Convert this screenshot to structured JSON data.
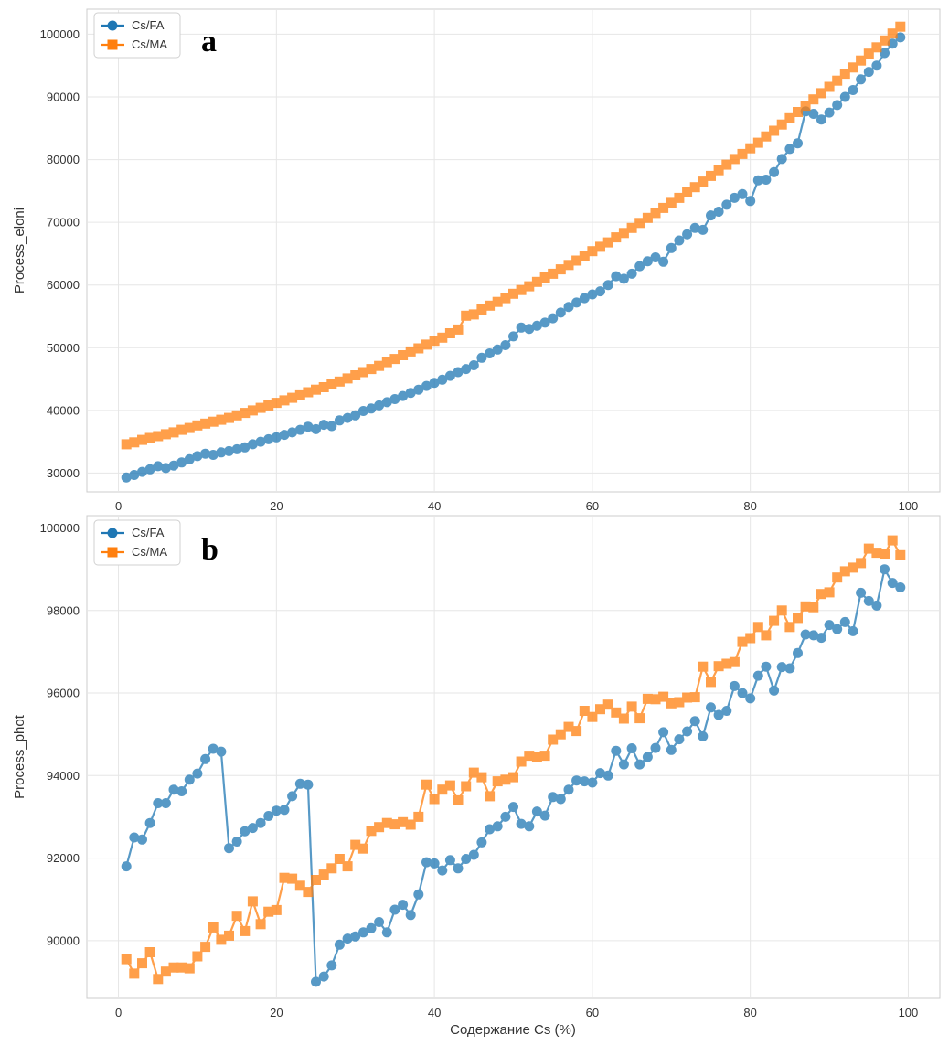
{
  "colors": {
    "cs_fa": "#1f77b4",
    "cs_ma": "#ff7f0e",
    "grid": "#e6e6e6",
    "frame": "#cccccc"
  },
  "chart_data": [
    {
      "type": "line",
      "panel_label": "a",
      "xlabel": "",
      "ylabel": "Process_eloni",
      "xlim": [
        -4,
        104
      ],
      "ylim": [
        27000,
        104000
      ],
      "xticks": [
        0,
        20,
        40,
        60,
        80,
        100
      ],
      "xtick_labels": [
        "0",
        "20",
        "40",
        "60",
        "80",
        "100"
      ],
      "yticks": [
        30000,
        40000,
        50000,
        60000,
        70000,
        80000,
        90000,
        100000
      ],
      "ytick_labels": [
        "30000",
        "40000",
        "50000",
        "60000",
        "70000",
        "80000",
        "90000",
        "100000"
      ],
      "grid": true,
      "legend_position": "top-left",
      "series": [
        {
          "name": "Cs/FA",
          "marker": "circle",
          "x": [
            1,
            2,
            3,
            4,
            5,
            6,
            7,
            8,
            9,
            10,
            11,
            12,
            13,
            14,
            15,
            16,
            17,
            18,
            19,
            20,
            21,
            22,
            23,
            24,
            25,
            26,
            27,
            28,
            29,
            30,
            31,
            32,
            33,
            34,
            35,
            36,
            37,
            38,
            39,
            40,
            41,
            42,
            43,
            44,
            45,
            46,
            47,
            48,
            49,
            50,
            51,
            52,
            53,
            54,
            55,
            56,
            57,
            58,
            59,
            60,
            61,
            62,
            63,
            64,
            65,
            66,
            67,
            68,
            69,
            70,
            71,
            72,
            73,
            74,
            75,
            76,
            77,
            78,
            79,
            80,
            81,
            82,
            83,
            84,
            85,
            86,
            87,
            88,
            89,
            90,
            91,
            92,
            93,
            94,
            95,
            96,
            97,
            98,
            99
          ],
          "values": [
            29300,
            29700,
            30200,
            30600,
            31100,
            30800,
            31200,
            31700,
            32200,
            32700,
            33100,
            32900,
            33300,
            33500,
            33800,
            34100,
            34600,
            35000,
            35400,
            35700,
            36100,
            36500,
            36900,
            37400,
            37000,
            37700,
            37500,
            38400,
            38800,
            39200,
            39900,
            40300,
            40800,
            41300,
            41800,
            42300,
            42800,
            43300,
            43900,
            44400,
            44900,
            45500,
            46100,
            46600,
            47200,
            48400,
            49100,
            49700,
            50400,
            51800,
            53200,
            53000,
            53500,
            54000,
            54700,
            55600,
            56500,
            57200,
            57900,
            58500,
            59000,
            60000,
            61400,
            61000,
            61800,
            63000,
            63800,
            64400,
            63700,
            65900,
            67100,
            68100,
            69100,
            68800,
            71100,
            71700,
            72800,
            73900,
            74500,
            73400,
            76700,
            76800,
            78000,
            80100,
            81700,
            82600,
            87700,
            87300,
            86400,
            87500,
            88700,
            90000,
            91100,
            92800,
            94000,
            95000,
            97000,
            98500,
            99500
          ]
        },
        {
          "name": "Cs/MA",
          "marker": "square",
          "x": [
            1,
            2,
            3,
            4,
            5,
            6,
            7,
            8,
            9,
            10,
            11,
            12,
            13,
            14,
            15,
            16,
            17,
            18,
            19,
            20,
            21,
            22,
            23,
            24,
            25,
            26,
            27,
            28,
            29,
            30,
            31,
            32,
            33,
            34,
            35,
            36,
            37,
            38,
            39,
            40,
            41,
            42,
            43,
            44,
            45,
            46,
            47,
            48,
            49,
            50,
            51,
            52,
            53,
            54,
            55,
            56,
            57,
            58,
            59,
            60,
            61,
            62,
            63,
            64,
            65,
            66,
            67,
            68,
            69,
            70,
            71,
            72,
            73,
            74,
            75,
            76,
            77,
            78,
            79,
            80,
            81,
            82,
            83,
            84,
            85,
            86,
            87,
            88,
            89,
            90,
            91,
            92,
            93,
            94,
            95,
            96,
            97,
            98,
            99
          ],
          "values": [
            34600,
            34900,
            35300,
            35600,
            35900,
            36200,
            36500,
            36900,
            37200,
            37600,
            37900,
            38200,
            38500,
            38800,
            39200,
            39600,
            40000,
            40400,
            40800,
            41200,
            41600,
            42000,
            42400,
            42900,
            43300,
            43700,
            44200,
            44600,
            45100,
            45600,
            46100,
            46600,
            47100,
            47700,
            48200,
            48800,
            49400,
            49900,
            50500,
            51100,
            51600,
            52300,
            52900,
            55100,
            55300,
            56100,
            56700,
            57300,
            57900,
            58600,
            59200,
            59800,
            60500,
            61200,
            61800,
            62500,
            63200,
            63900,
            64700,
            65400,
            66100,
            66800,
            67600,
            68300,
            69100,
            69900,
            70700,
            71500,
            72300,
            73100,
            73900,
            74800,
            75600,
            76500,
            77400,
            78300,
            79200,
            80100,
            80900,
            81800,
            82700,
            83700,
            84600,
            85600,
            86600,
            87600,
            88600,
            89600,
            90600,
            91600,
            92600,
            93700,
            94700,
            95800,
            96900,
            97900,
            99000,
            100100,
            101200
          ]
        }
      ]
    },
    {
      "type": "line",
      "panel_label": "b",
      "xlabel": "Содержание Cs (%)",
      "ylabel": "Process_phot",
      "xlim": [
        -4,
        104
      ],
      "ylim": [
        88600,
        100300
      ],
      "xticks": [
        0,
        20,
        40,
        60,
        80,
        100
      ],
      "xtick_labels": [
        "0",
        "20",
        "40",
        "60",
        "80",
        "100"
      ],
      "yticks": [
        90000,
        92000,
        94000,
        96000,
        98000,
        100000
      ],
      "ytick_labels": [
        "90000",
        "92000",
        "94000",
        "96000",
        "98000",
        "100000"
      ],
      "grid": true,
      "legend_position": "top-left",
      "series": [
        {
          "name": "Cs/FA",
          "marker": "circle",
          "x": [
            1,
            2,
            3,
            4,
            5,
            6,
            7,
            8,
            9,
            10,
            11,
            12,
            13,
            14,
            15,
            16,
            17,
            18,
            19,
            20,
            21,
            22,
            23,
            24,
            25,
            26,
            27,
            28,
            29,
            30,
            31,
            32,
            33,
            34,
            35,
            36,
            37,
            38,
            39,
            40,
            41,
            42,
            43,
            44,
            45,
            46,
            47,
            48,
            49,
            50,
            51,
            52,
            53,
            54,
            55,
            56,
            57,
            58,
            59,
            60,
            61,
            62,
            63,
            64,
            65,
            66,
            67,
            68,
            69,
            70,
            71,
            72,
            73,
            74,
            75,
            76,
            77,
            78,
            79,
            80,
            81,
            82,
            83,
            84,
            85,
            86,
            87,
            88,
            89,
            90,
            91,
            92,
            93,
            94,
            95,
            96,
            97,
            98,
            99
          ],
          "values": [
            91800,
            92500,
            92450,
            92850,
            93330,
            93330,
            93660,
            93620,
            93900,
            94050,
            94400,
            94650,
            94580,
            92240,
            92400,
            92650,
            92730,
            92850,
            93020,
            93150,
            93170,
            93500,
            93800,
            93780,
            89000,
            89130,
            89400,
            89900,
            90050,
            90100,
            90200,
            90300,
            90450,
            90200,
            90750,
            90870,
            90620,
            91120,
            91900,
            91870,
            91700,
            91950,
            91750,
            91980,
            92080,
            92380,
            92700,
            92770,
            93000,
            93240,
            92830,
            92770,
            93130,
            93030,
            93480,
            93430,
            93660,
            93880,
            93860,
            93830,
            94060,
            94000,
            94600,
            94270,
            94660,
            94270,
            94450,
            94670,
            95050,
            94620,
            94880,
            95070,
            95320,
            94950,
            95650,
            95470,
            95570,
            96170,
            96000,
            95870,
            96420,
            96640,
            96060,
            96630,
            96600,
            96970,
            97420,
            97400,
            97340,
            97650,
            97550,
            97720,
            97500,
            98430,
            98230,
            98120,
            99000,
            98670,
            98560
          ]
        },
        {
          "name": "Cs/MA",
          "marker": "square",
          "x": [
            1,
            2,
            3,
            4,
            5,
            6,
            7,
            8,
            9,
            10,
            11,
            12,
            13,
            14,
            15,
            16,
            17,
            18,
            19,
            20,
            21,
            22,
            23,
            24,
            25,
            26,
            27,
            28,
            29,
            30,
            31,
            32,
            33,
            34,
            35,
            36,
            37,
            38,
            39,
            40,
            41,
            42,
            43,
            44,
            45,
            46,
            47,
            48,
            49,
            50,
            51,
            52,
            53,
            54,
            55,
            56,
            57,
            58,
            59,
            60,
            61,
            62,
            63,
            64,
            65,
            66,
            67,
            68,
            69,
            70,
            71,
            72,
            73,
            74,
            75,
            76,
            77,
            78,
            79,
            80,
            81,
            82,
            83,
            84,
            85,
            86,
            87,
            88,
            89,
            90,
            91,
            92,
            93,
            94,
            95,
            96,
            97,
            98,
            99
          ],
          "values": [
            89550,
            89200,
            89450,
            89720,
            89070,
            89250,
            89350,
            89350,
            89330,
            89620,
            89850,
            90320,
            90020,
            90120,
            90600,
            90230,
            90950,
            90400,
            90700,
            90740,
            91520,
            91500,
            91330,
            91180,
            91470,
            91600,
            91750,
            91980,
            91800,
            92320,
            92230,
            92660,
            92750,
            92850,
            92820,
            92870,
            92810,
            93000,
            93780,
            93430,
            93660,
            93760,
            93400,
            93740,
            94070,
            93960,
            93500,
            93860,
            93900,
            93960,
            94340,
            94480,
            94460,
            94480,
            94870,
            95000,
            95180,
            95080,
            95570,
            95420,
            95610,
            95720,
            95530,
            95380,
            95670,
            95390,
            95860,
            95850,
            95910,
            95750,
            95780,
            95890,
            95900,
            96640,
            96270,
            96650,
            96710,
            96750,
            97240,
            97330,
            97600,
            97400,
            97750,
            98000,
            97600,
            97820,
            98100,
            98080,
            98400,
            98440,
            98800,
            98950,
            99040,
            99150,
            99500,
            99400,
            99380,
            99700,
            99340
          ]
        }
      ]
    }
  ]
}
